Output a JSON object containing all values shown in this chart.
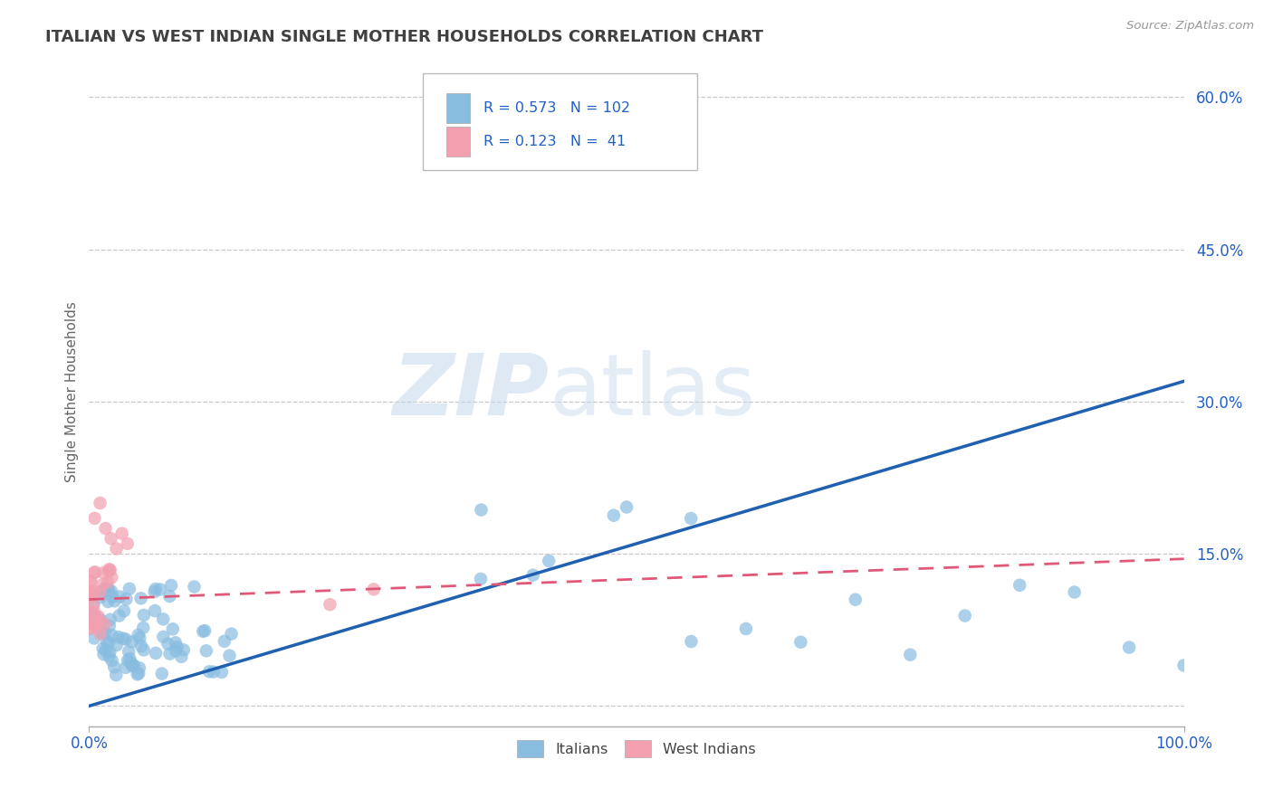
{
  "title": "ITALIAN VS WEST INDIAN SINGLE MOTHER HOUSEHOLDS CORRELATION CHART",
  "source": "Source: ZipAtlas.com",
  "ylabel": "Single Mother Households",
  "legend_r": [
    0.573,
    0.123
  ],
  "legend_n": [
    102,
    41
  ],
  "watermark_zip": "ZIP",
  "watermark_atlas": "atlas",
  "blue_color": "#89bde0",
  "pink_color": "#f2a0b0",
  "blue_line_color": "#2060b0",
  "pink_line_color": "#e05878",
  "title_color": "#404040",
  "legend_r_color": "#2060c8",
  "axis_label_color": "#2060c8",
  "background_color": "#ffffff",
  "grid_color": "#c8c8c8",
  "yticks": [
    0.0,
    0.15,
    0.3,
    0.45,
    0.6
  ],
  "yticklabels": [
    "",
    "15.0%",
    "30.0%",
    "45.0%",
    "60.0%"
  ],
  "xlim": [
    0.0,
    1.0
  ],
  "ylim": [
    -0.02,
    0.64
  ],
  "blue_line_x0": 0.0,
  "blue_line_y0": 0.0,
  "blue_line_x1": 1.0,
  "blue_line_y1": 0.32,
  "pink_line_x0": 0.0,
  "pink_line_y0": 0.105,
  "pink_line_x1": 1.0,
  "pink_line_y1": 0.145
}
